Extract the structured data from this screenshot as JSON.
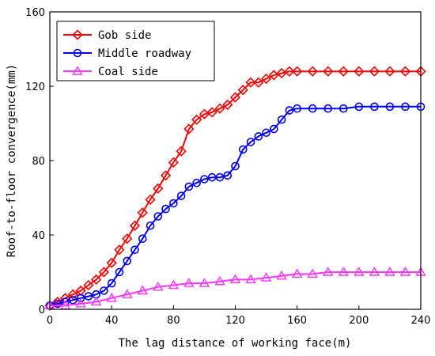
{
  "chart_data": {
    "type": "line",
    "xlabel": "The lag distance of working face(m)",
    "ylabel": "Roof-to-floor convergence(mm)",
    "xlim": [
      0,
      240
    ],
    "ylim": [
      0,
      160
    ],
    "x_ticks": [
      0,
      40,
      80,
      120,
      160,
      200,
      240
    ],
    "y_ticks": [
      0,
      40,
      80,
      120,
      160
    ],
    "legend_position": "top-left",
    "grid": false,
    "series": [
      {
        "name": "Gob side",
        "color": "#ff0000",
        "marker": "diamond",
        "points": [
          [
            0,
            2
          ],
          [
            5,
            4
          ],
          [
            10,
            6
          ],
          [
            15,
            8
          ],
          [
            20,
            10
          ],
          [
            25,
            13
          ],
          [
            30,
            16
          ],
          [
            35,
            20
          ],
          [
            40,
            25
          ],
          [
            45,
            32
          ],
          [
            50,
            38
          ],
          [
            55,
            45
          ],
          [
            60,
            52
          ],
          [
            65,
            59
          ],
          [
            70,
            65
          ],
          [
            75,
            72
          ],
          [
            80,
            79
          ],
          [
            85,
            85
          ],
          [
            90,
            97
          ],
          [
            95,
            102
          ],
          [
            100,
            105
          ],
          [
            105,
            106
          ],
          [
            110,
            108
          ],
          [
            115,
            110
          ],
          [
            120,
            114
          ],
          [
            125,
            118
          ],
          [
            130,
            122
          ],
          [
            135,
            122
          ],
          [
            140,
            124
          ],
          [
            145,
            126
          ],
          [
            150,
            127
          ],
          [
            155,
            128
          ],
          [
            160,
            128
          ],
          [
            170,
            128
          ],
          [
            180,
            128
          ],
          [
            190,
            128
          ],
          [
            200,
            128
          ],
          [
            210,
            128
          ],
          [
            220,
            128
          ],
          [
            230,
            128
          ],
          [
            240,
            128
          ]
        ]
      },
      {
        "name": "Middle roadway",
        "color": "#0000ff",
        "marker": "circle",
        "points": [
          [
            0,
            2
          ],
          [
            5,
            3
          ],
          [
            10,
            4
          ],
          [
            15,
            5
          ],
          [
            20,
            6
          ],
          [
            25,
            7
          ],
          [
            30,
            8
          ],
          [
            35,
            10
          ],
          [
            40,
            14
          ],
          [
            45,
            20
          ],
          [
            50,
            26
          ],
          [
            55,
            32
          ],
          [
            60,
            38
          ],
          [
            65,
            45
          ],
          [
            70,
            50
          ],
          [
            75,
            54
          ],
          [
            80,
            57
          ],
          [
            85,
            61
          ],
          [
            90,
            66
          ],
          [
            95,
            68
          ],
          [
            100,
            70
          ],
          [
            105,
            71
          ],
          [
            110,
            71
          ],
          [
            115,
            72
          ],
          [
            120,
            77
          ],
          [
            125,
            86
          ],
          [
            130,
            90
          ],
          [
            135,
            93
          ],
          [
            140,
            95
          ],
          [
            145,
            97
          ],
          [
            150,
            102
          ],
          [
            155,
            107
          ],
          [
            160,
            108
          ],
          [
            170,
            108
          ],
          [
            180,
            108
          ],
          [
            190,
            108
          ],
          [
            200,
            109
          ],
          [
            210,
            109
          ],
          [
            220,
            109
          ],
          [
            230,
            109
          ],
          [
            240,
            109
          ]
        ]
      },
      {
        "name": "Coal side",
        "color": "#ff33ff",
        "marker": "triangle",
        "points": [
          [
            0,
            2
          ],
          [
            10,
            2
          ],
          [
            20,
            3
          ],
          [
            30,
            4
          ],
          [
            40,
            6
          ],
          [
            50,
            8
          ],
          [
            60,
            10
          ],
          [
            70,
            12
          ],
          [
            80,
            13
          ],
          [
            90,
            14
          ],
          [
            100,
            14
          ],
          [
            110,
            15
          ],
          [
            120,
            16
          ],
          [
            130,
            16
          ],
          [
            140,
            17
          ],
          [
            150,
            18
          ],
          [
            160,
            19
          ],
          [
            170,
            19
          ],
          [
            180,
            20
          ],
          [
            190,
            20
          ],
          [
            200,
            20
          ],
          [
            210,
            20
          ],
          [
            220,
            20
          ],
          [
            230,
            20
          ],
          [
            240,
            20
          ]
        ]
      }
    ]
  }
}
